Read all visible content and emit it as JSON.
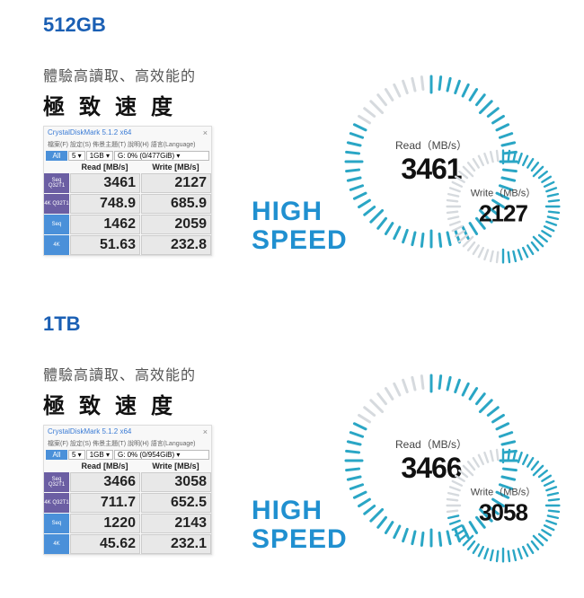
{
  "palette": {
    "primary_blue": "#1a5fb4",
    "speed_blue": "#2090d0",
    "accent_teal": "#2aa6c5",
    "tick_light": "#cfd8dc",
    "text_dark": "#111111",
    "text_mid": "#555555",
    "cdm_btn_blue": "#4a90d9",
    "cdm_btn_purple": "#6b5ea3",
    "cell_bg": "#e8e8e8"
  },
  "cdm": {
    "title": "CrystalDiskMark 5.1.2 x64",
    "close": "×",
    "all_label": "All",
    "loops_sel": "5",
    "size_sel": "1GB",
    "read_col": "Read [MB/s]",
    "write_col": "Write [MB/s]",
    "row_labels": [
      "Seq Q32T1",
      "4K Q32T1",
      "Seq",
      "4K"
    ]
  },
  "high_speed_l1": "HIGH",
  "high_speed_l2": "SPEED",
  "read_gauge_label": "Read（MB/s）",
  "write_gauge_label": "Write（MB/s）",
  "sections": [
    {
      "capacity": "512GB",
      "tagline": "體驗高讀取、高效能的",
      "heading": "極致速度",
      "menu": "檔案(F)  設定(S)  佈景主題(T)  說明(H)  語言(Language)",
      "drive_sel": "G: 0% (0/477GiB)",
      "rows": [
        {
          "read": "3461",
          "write": "2127"
        },
        {
          "read": "748.9",
          "write": "685.9"
        },
        {
          "read": "1462",
          "write": "2059"
        },
        {
          "read": "51.63",
          "write": "232.8"
        }
      ],
      "gauge_read_value": "3461",
      "gauge_write_value": "2127",
      "gauge_read_fill_deg": 300,
      "gauge_write_fill_deg": 180
    },
    {
      "capacity": "1TB",
      "tagline": "體驗高讀取、高效能的",
      "heading": "極致速度",
      "menu": "檔案(F)  設定(S)  佈景主題(T)  說明(H)  語言(Language)",
      "drive_sel": "G: 0% (0/954GiB)",
      "rows": [
        {
          "read": "3466",
          "write": "3058"
        },
        {
          "read": "711.7",
          "write": "652.5"
        },
        {
          "read": "1220",
          "write": "2143"
        },
        {
          "read": "45.62",
          "write": "232.1"
        }
      ],
      "gauge_read_value": "3466",
      "gauge_write_value": "3058",
      "gauge_read_fill_deg": 300,
      "gauge_write_fill_deg": 260
    }
  ],
  "gauge_style": {
    "tick_count": 56,
    "tick_len_long": 18,
    "tick_len_short": 14,
    "tick_width": 3,
    "color_on": "#2aa6c5",
    "color_off": "#d6dade"
  }
}
